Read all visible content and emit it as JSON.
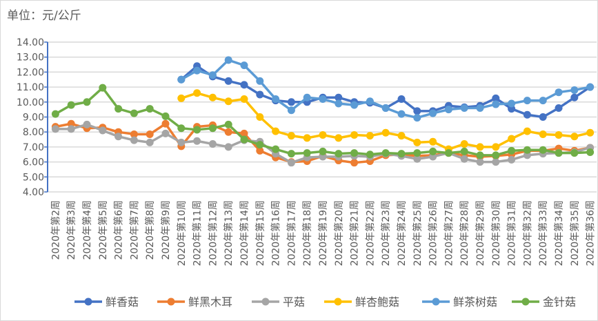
{
  "chart_data": {
    "type": "line",
    "title": "单位：元/公斤",
    "xlabel": "",
    "ylabel": "",
    "ylim": [
      4,
      14
    ],
    "yticks": [
      "4.00",
      "5.00",
      "6.00",
      "7.00",
      "8.00",
      "9.00",
      "10.00",
      "11.00",
      "12.00",
      "13.00",
      "14.00"
    ],
    "grid": true,
    "legend_position": "bottom",
    "categories": [
      "2020年第2周",
      "2020年第3周",
      "2020年第4周",
      "2020年第5周",
      "2020年第6周",
      "2020年第7周",
      "2020年第8周",
      "2020年第9周",
      "2020年第10周",
      "2020年第11周",
      "2020年第12周",
      "2020年第13周",
      "2020年第14周",
      "2020年第15周",
      "2020年第16周",
      "2020年第17周",
      "2020年第18周",
      "2020年第19周",
      "2020年第20周",
      "2020年第21周",
      "2020年第22周",
      "2020年第23周",
      "2020年第24周",
      "2020年第25周",
      "2020年第26周",
      "2020年第27周",
      "2020年第28周",
      "2020年第29周",
      "2020年第30周",
      "2020年第31周",
      "2020年第32周",
      "2020年第33周",
      "2020年第34周",
      "2020年第35周",
      "2020年第36周"
    ],
    "series": [
      {
        "name": "鲜香菇",
        "color": "#4472c4",
        "values": [
          null,
          null,
          null,
          null,
          null,
          null,
          null,
          null,
          11.5,
          12.4,
          11.7,
          11.4,
          11.15,
          10.5,
          10.1,
          10.0,
          10.0,
          10.3,
          10.3,
          10.0,
          9.95,
          9.6,
          10.2,
          9.4,
          9.4,
          9.75,
          9.65,
          9.75,
          10.25,
          9.55,
          9.15,
          9.0,
          9.6,
          10.3,
          11.0
        ]
      },
      {
        "name": "鲜黑木耳",
        "color": "#ed7d31",
        "values": [
          8.35,
          8.55,
          8.25,
          8.3,
          8.0,
          7.85,
          7.85,
          8.55,
          7.05,
          8.35,
          8.45,
          8.0,
          7.9,
          6.75,
          6.3,
          6.0,
          6.05,
          6.4,
          6.1,
          5.95,
          6.05,
          6.45,
          6.5,
          6.4,
          6.45,
          6.6,
          6.45,
          6.35,
          6.4,
          6.5,
          6.75,
          6.75,
          6.9,
          6.75,
          6.95
        ]
      },
      {
        "name": "平菇",
        "color": "#a5a5a5",
        "values": [
          8.2,
          8.2,
          8.5,
          8.1,
          7.7,
          7.45,
          7.3,
          7.9,
          7.3,
          7.4,
          7.2,
          7.0,
          7.45,
          7.35,
          6.55,
          5.95,
          6.3,
          6.35,
          6.35,
          6.4,
          6.35,
          6.55,
          6.4,
          6.2,
          6.35,
          6.6,
          6.2,
          6.0,
          6.0,
          6.15,
          6.45,
          6.55,
          6.6,
          6.65,
          6.95
        ]
      },
      {
        "name": "鲜杏鲍菇",
        "color": "#ffc000",
        "values": [
          null,
          null,
          null,
          null,
          null,
          null,
          null,
          null,
          10.25,
          10.6,
          10.3,
          10.05,
          10.2,
          9.0,
          8.05,
          7.75,
          7.6,
          7.8,
          7.6,
          7.8,
          7.75,
          7.95,
          7.75,
          7.3,
          7.35,
          6.85,
          7.2,
          7.0,
          7.0,
          7.55,
          8.05,
          7.85,
          7.8,
          7.7,
          7.95
        ]
      },
      {
        "name": "鲜茶树菇",
        "color": "#5b9bd5",
        "values": [
          null,
          null,
          null,
          null,
          null,
          null,
          null,
          null,
          11.5,
          12.1,
          11.8,
          12.8,
          12.45,
          11.4,
          10.2,
          9.45,
          10.3,
          10.2,
          9.9,
          9.8,
          10.05,
          9.6,
          9.2,
          8.95,
          9.25,
          9.5,
          9.6,
          9.6,
          9.85,
          9.9,
          10.1,
          10.1,
          10.65,
          10.8,
          11.0
        ]
      },
      {
        "name": "金针菇",
        "color": "#70ad47",
        "values": [
          9.2,
          9.8,
          10.0,
          10.95,
          9.55,
          9.25,
          9.55,
          9.05,
          8.25,
          8.15,
          8.25,
          8.5,
          7.5,
          7.15,
          6.85,
          6.55,
          6.6,
          6.7,
          6.55,
          6.6,
          6.5,
          6.6,
          6.55,
          6.6,
          6.7,
          6.6,
          6.7,
          6.45,
          6.45,
          6.75,
          6.8,
          6.8,
          6.6,
          6.6,
          6.65
        ]
      }
    ]
  }
}
